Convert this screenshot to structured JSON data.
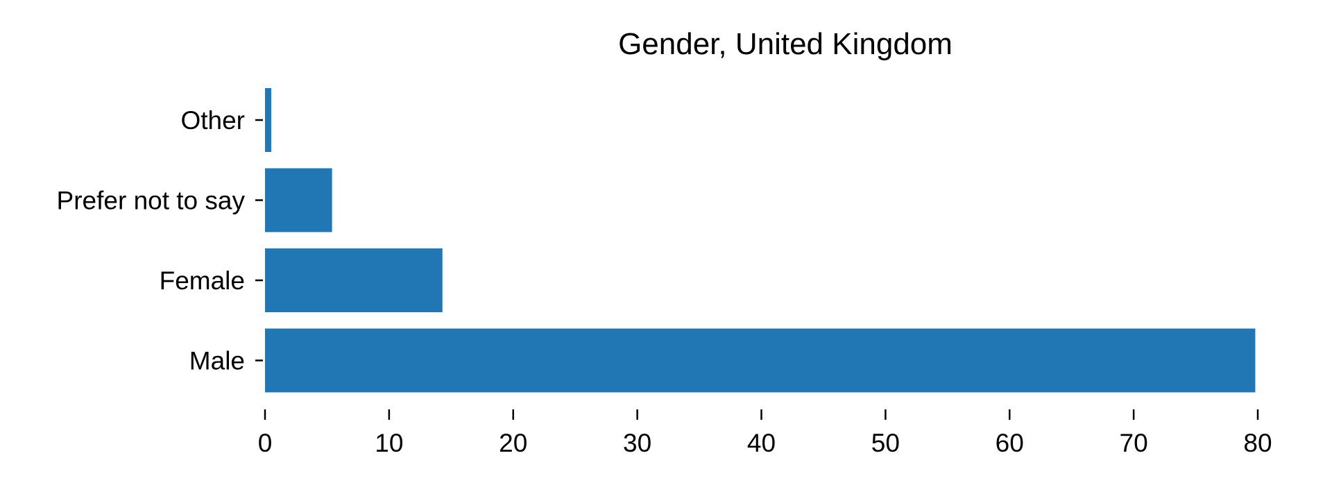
{
  "chart_data": {
    "type": "bar",
    "orientation": "horizontal",
    "title": "Gender, United Kingdom",
    "xlabel": "",
    "ylabel": "",
    "categories": [
      "Male",
      "Female",
      "Prefer not to say",
      "Other"
    ],
    "values": [
      79.8,
      14.3,
      5.4,
      0.5
    ],
    "xlim": [
      0,
      80
    ],
    "xticks": [
      0,
      10,
      20,
      30,
      40,
      50,
      60,
      70,
      80
    ],
    "bar_color": "#2077b4",
    "grid": false,
    "legend": "none"
  }
}
